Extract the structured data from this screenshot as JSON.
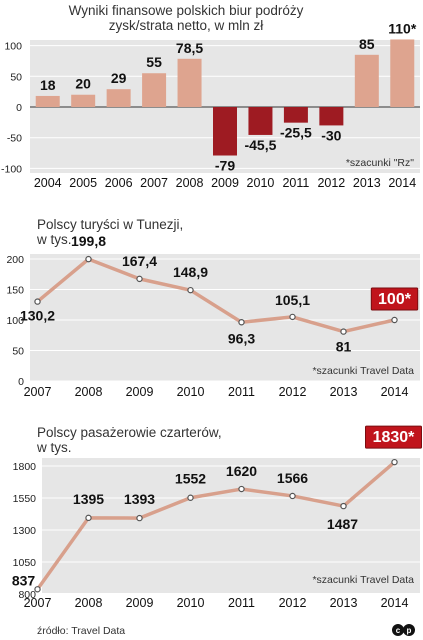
{
  "chart_data": [
    {
      "type": "bar",
      "title": "Wyniki finansowe polskich biur podróży",
      "subtitle": "zysk/strata netto, w mln zł",
      "categories": [
        "2004",
        "2005",
        "2006",
        "2007",
        "2008",
        "2009",
        "2010",
        "2011",
        "2012",
        "2013",
        "2014"
      ],
      "values": [
        18,
        20,
        29,
        55,
        78.5,
        -79,
        -45.5,
        -25.5,
        -30,
        85,
        110
      ],
      "value_labels": [
        "18",
        "20",
        "29",
        "55",
        "78,5",
        "-79",
        "-45,5",
        "-25,5",
        "-30",
        "85",
        "110*"
      ],
      "y_ticks": [
        "100",
        "50",
        "0",
        "-50",
        "-100"
      ],
      "ylim": [
        -100,
        120
      ],
      "grid": true,
      "note": "*szacunki \"Rz\"",
      "colors": {
        "positive": "#dea48f",
        "negative": "#9e1b22",
        "band": "#e6e6e6"
      }
    },
    {
      "type": "line",
      "title": "Polscy turyści w Tunezji,",
      "subtitle": "w tys.",
      "categories": [
        "2007",
        "2008",
        "2009",
        "2010",
        "2011",
        "2012",
        "2013",
        "2014"
      ],
      "values": [
        130.2,
        199.8,
        167.4,
        148.9,
        96.3,
        105.1,
        81,
        100
      ],
      "value_labels": [
        "130,2",
        "199,8",
        "167,4",
        "148,9",
        "96,3",
        "105,1",
        "81",
        "100*"
      ],
      "highlight_index": 7,
      "y_ticks": [
        "200",
        "150",
        "100",
        "50",
        "0"
      ],
      "ylim": [
        0,
        200
      ],
      "grid": true,
      "note": "*szacunki Travel Data",
      "colors": {
        "line": "#d8a08c",
        "highlight": "#c0141c"
      }
    },
    {
      "type": "line",
      "title": "Polscy pasażerowie czarterów,",
      "subtitle": "w tys.",
      "categories": [
        "2007",
        "2008",
        "2009",
        "2010",
        "2011",
        "2012",
        "2013",
        "2014"
      ],
      "values": [
        837,
        1395,
        1393,
        1552,
        1620,
        1566,
        1487,
        1830
      ],
      "value_labels": [
        "837",
        "1395",
        "1393",
        "1552",
        "1620",
        "1566",
        "1487",
        "1830*"
      ],
      "highlight_index": 7,
      "y_ticks": [
        "1800",
        "1550",
        "1300",
        "1050",
        "800"
      ],
      "ylim": [
        800,
        1800
      ],
      "grid": true,
      "note": "*szacunki Travel Data",
      "colors": {
        "line": "#d8a08c",
        "highlight": "#c0141c"
      }
    }
  ],
  "footer": {
    "source": "źródło: Travel Data",
    "logo": "cp-logo"
  }
}
